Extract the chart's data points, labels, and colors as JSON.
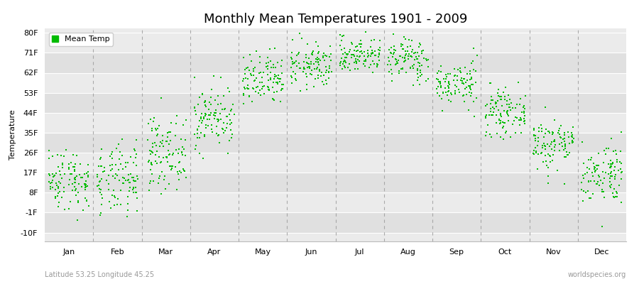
{
  "title": "Monthly Mean Temperatures 1901 - 2009",
  "ylabel": "Temperature",
  "subtitle_left": "Latitude 53.25 Longitude 45.25",
  "subtitle_right": "worldspecies.org",
  "yticks": [
    -10,
    -1,
    8,
    17,
    26,
    35,
    44,
    53,
    62,
    71,
    80
  ],
  "ytick_labels": [
    "-10F",
    "-1F",
    "8F",
    "17F",
    "26F",
    "35F",
    "44F",
    "53F",
    "62F",
    "71F",
    "80F"
  ],
  "ylim": [
    -14,
    82
  ],
  "months": [
    "Jan",
    "Feb",
    "Mar",
    "Apr",
    "May",
    "Jun",
    "Jul",
    "Aug",
    "Sep",
    "Oct",
    "Nov",
    "Dec"
  ],
  "dot_color": "#00bb00",
  "dot_size": 3,
  "background_color": "#ffffff",
  "plot_bg_light": "#ebebeb",
  "plot_bg_dark": "#e0e0e0",
  "grid_color": "#ffffff",
  "dashed_line_color": "#999999",
  "legend_label": "Mean Temp",
  "n_years": 109,
  "monthly_means_F": [
    14,
    13,
    26,
    42,
    58,
    65,
    70,
    68,
    57,
    44,
    30,
    17
  ],
  "monthly_std_F": [
    7,
    8,
    8,
    7,
    6,
    5,
    4,
    5,
    5,
    5,
    6,
    7
  ],
  "title_fontsize": 13,
  "axis_fontsize": 8,
  "legend_fontsize": 8
}
